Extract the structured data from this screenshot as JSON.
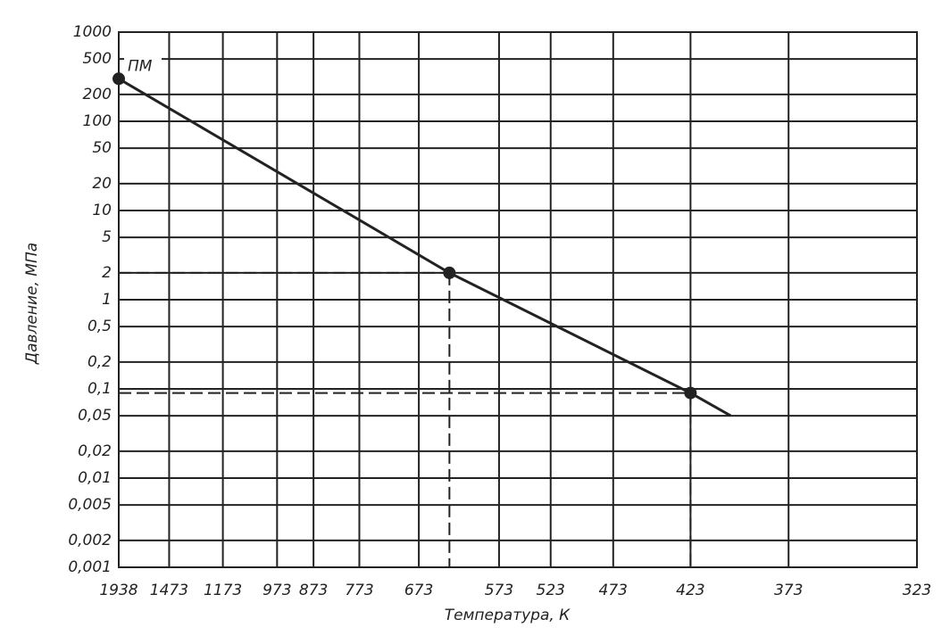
{
  "chart_data": {
    "type": "line",
    "x_label": "Температура, К",
    "y_label": "Давление, МПа",
    "xscale": "reciprocal",
    "yscale": "log",
    "grid": true,
    "xlim": [
      1938,
      323
    ],
    "xticks": [
      1938,
      1473,
      1173,
      973,
      873,
      773,
      673,
      573,
      523,
      473,
      423,
      373,
      323
    ],
    "ylim": [
      0.001,
      1000
    ],
    "yticks": [
      1000,
      500,
      200,
      100,
      50,
      20,
      10,
      5,
      2,
      1,
      {
        "value": 0.5,
        "label": "0,5"
      },
      {
        "value": 0.2,
        "label": "0,2"
      },
      {
        "value": 0.1,
        "label": "0,1"
      },
      {
        "value": 0.05,
        "label": "0,05"
      },
      {
        "value": 0.02,
        "label": "0,02"
      },
      {
        "value": 0.01,
        "label": "0,01"
      },
      {
        "value": 0.005,
        "label": "0,005"
      },
      {
        "value": 0.002,
        "label": "0,002"
      },
      {
        "value": 0.001,
        "label": "0,001"
      }
    ],
    "series": [
      {
        "color": "#222222",
        "x": [
          1938,
          631,
          423,
          401
        ],
        "values": [
          300,
          2,
          0.09,
          0.05
        ]
      }
    ],
    "points": {
      "color": "#222222",
      "x": [
        1938,
        631,
        423
      ],
      "values": [
        300,
        2,
        0.09
      ]
    },
    "annotations": [
      {
        "text": "ПМ",
        "x": 1938,
        "y": 300
      }
    ]
  }
}
